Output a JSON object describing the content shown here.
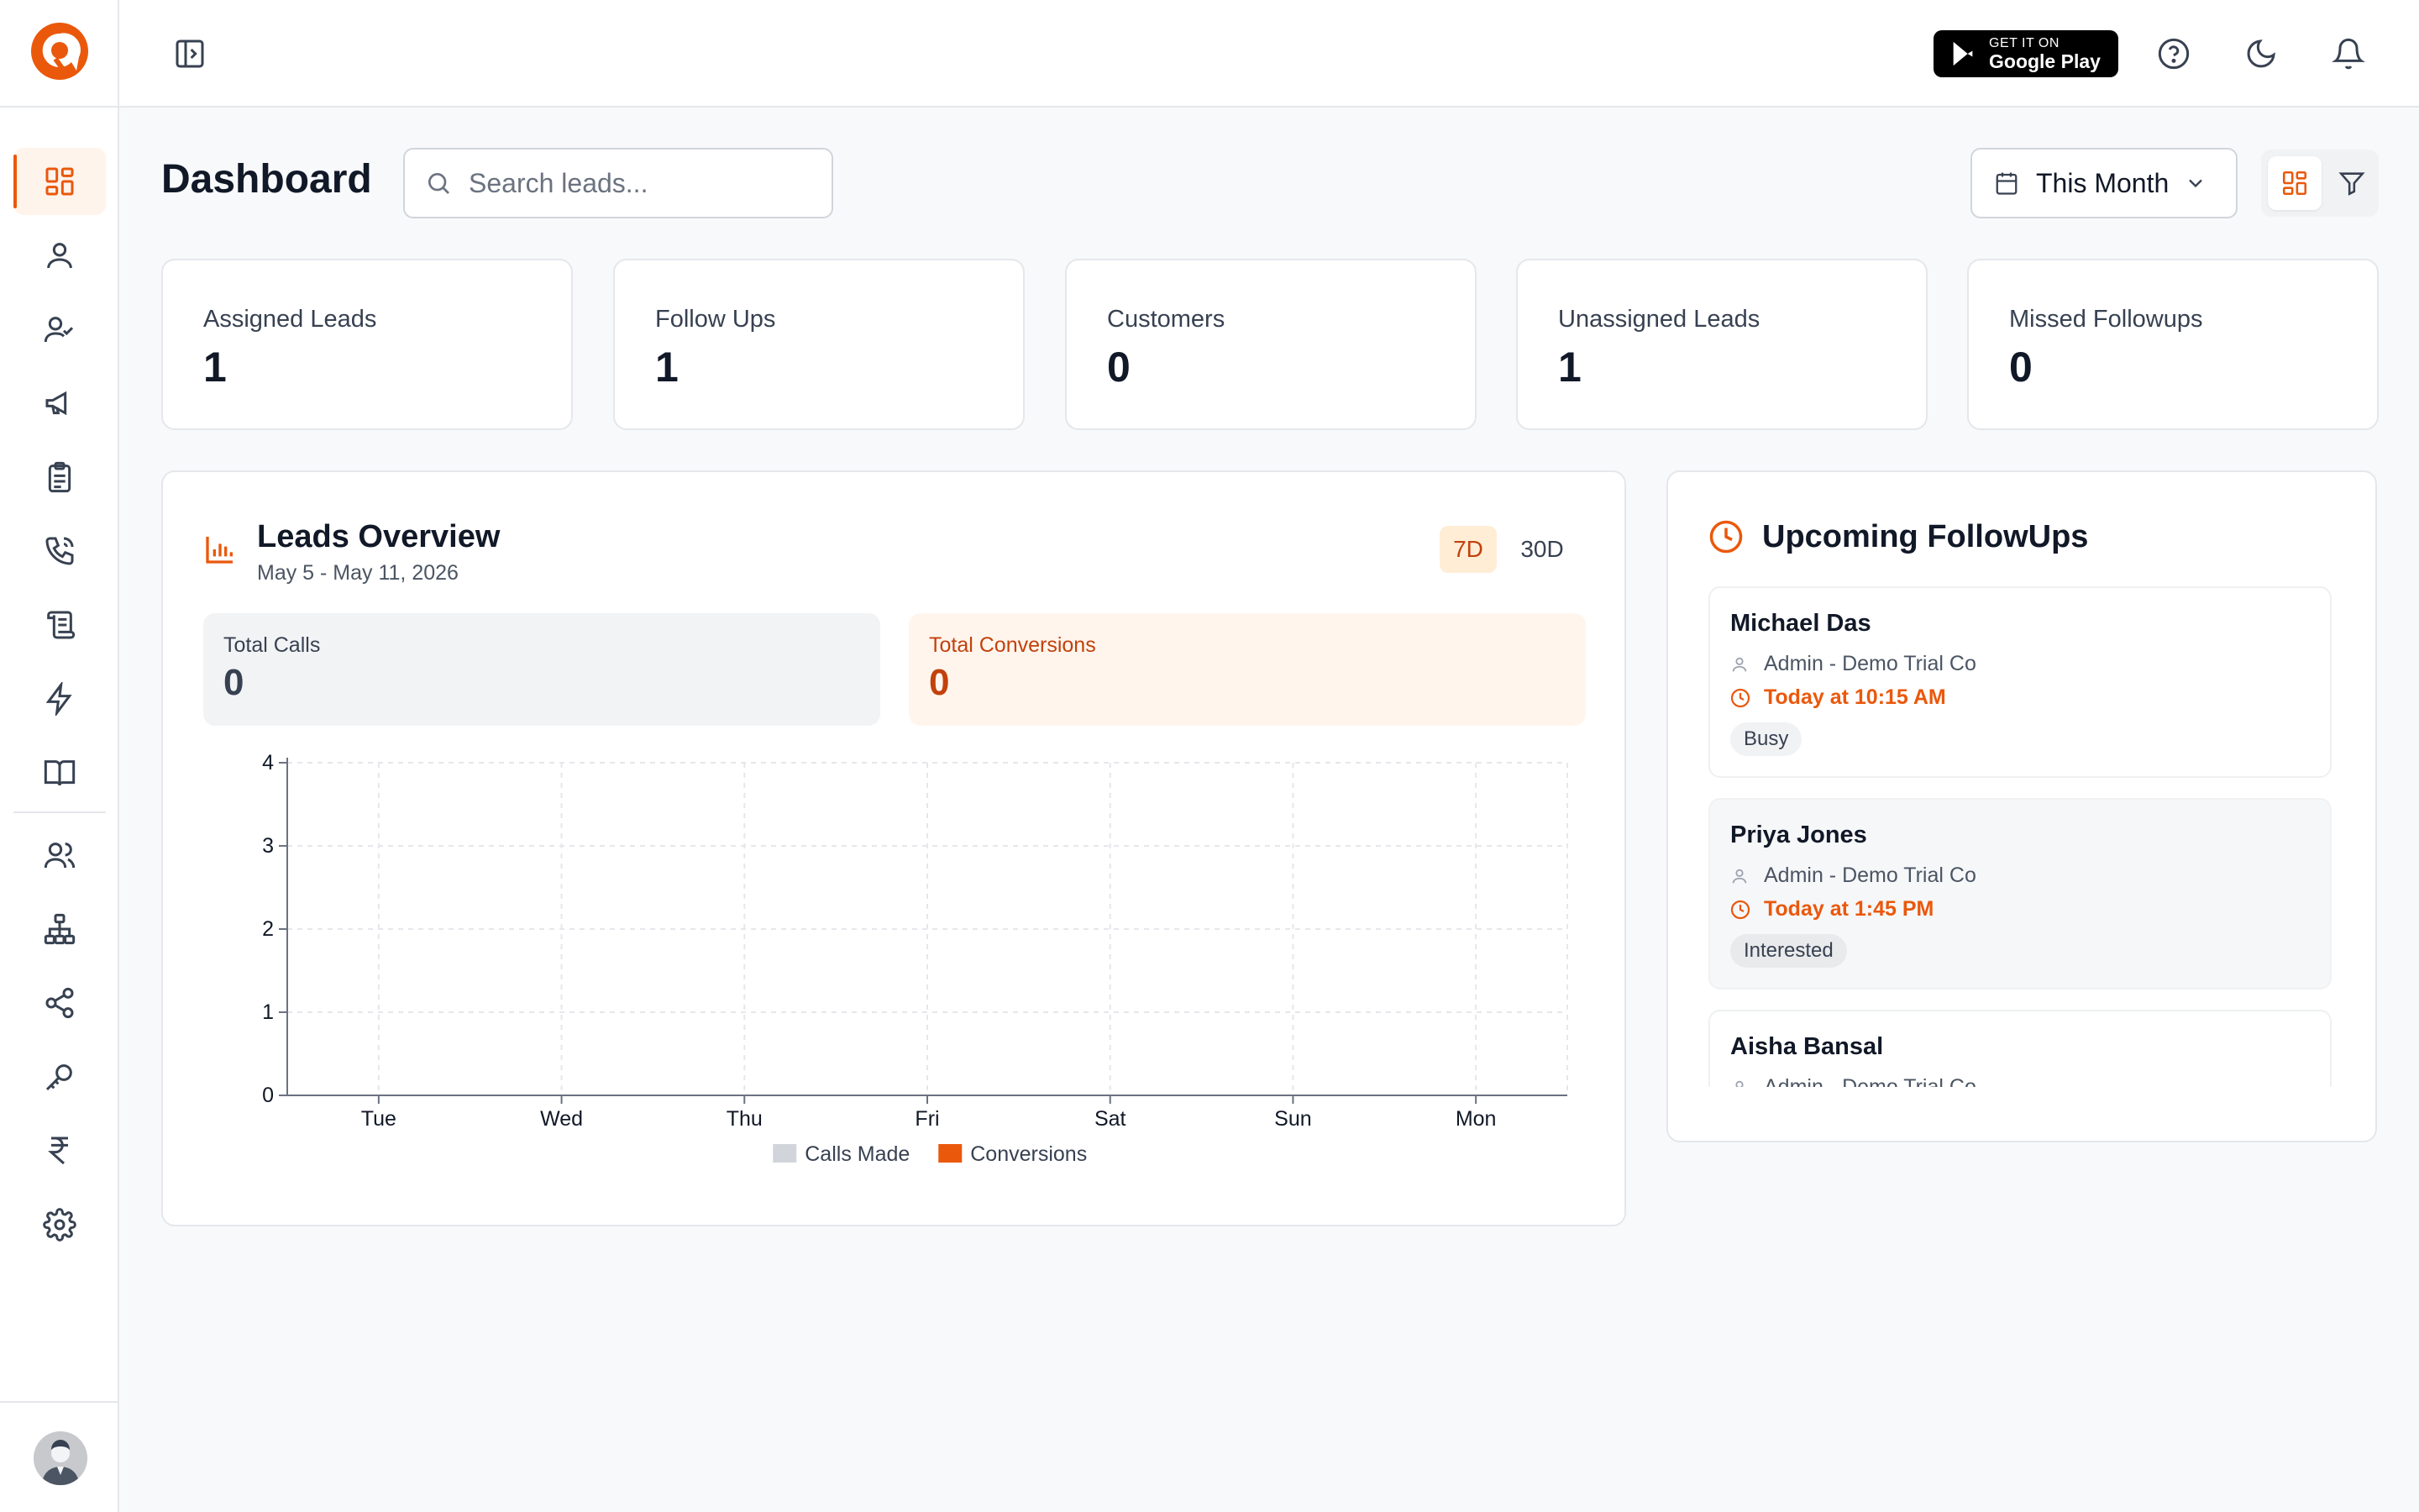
{
  "brand": {
    "accent": "#ea580c",
    "accent_light": "#fff4ec"
  },
  "sidebar": {
    "items": [
      {
        "name": "dashboard",
        "icon": "dashboard-grid-icon",
        "active": true
      },
      {
        "name": "user",
        "icon": "user-icon"
      },
      {
        "name": "user-check",
        "icon": "user-check-icon"
      },
      {
        "name": "campaigns",
        "icon": "megaphone-icon"
      },
      {
        "name": "clipboard",
        "icon": "clipboard-icon"
      },
      {
        "name": "calls",
        "icon": "phone-call-icon"
      },
      {
        "name": "scroll",
        "icon": "scroll-icon"
      },
      {
        "name": "automation",
        "icon": "lightning-icon"
      },
      {
        "name": "knowledge",
        "icon": "book-icon"
      },
      {
        "name": "team",
        "icon": "users-icon"
      },
      {
        "name": "hierarchy",
        "icon": "hierarchy-icon"
      },
      {
        "name": "share",
        "icon": "share-icon"
      },
      {
        "name": "keys",
        "icon": "key-icon"
      },
      {
        "name": "billing",
        "icon": "rupee-icon"
      },
      {
        "name": "settings",
        "icon": "gear-icon"
      }
    ]
  },
  "topbar": {
    "gplay_small": "GET IT ON",
    "gplay_big": "Google Play"
  },
  "header": {
    "title": "Dashboard",
    "search_placeholder": "Search leads...",
    "date_range": "This Month"
  },
  "stats": [
    {
      "label": "Assigned Leads",
      "value": "1"
    },
    {
      "label": "Follow Ups",
      "value": "1"
    },
    {
      "label": "Customers",
      "value": "0"
    },
    {
      "label": "Unassigned Leads",
      "value": "1"
    },
    {
      "label": "Missed Followups",
      "value": "0"
    }
  ],
  "overview": {
    "title": "Leads Overview",
    "date_range": "May 5 - May 11, 2026",
    "range_7d": "7D",
    "range_30d": "30D",
    "total_calls_label": "Total Calls",
    "total_calls_value": "0",
    "total_conversions_label": "Total Conversions",
    "total_conversions_value": "0"
  },
  "chart_data": {
    "type": "bar",
    "categories": [
      "Tue",
      "Wed",
      "Thu",
      "Fri",
      "Sat",
      "Sun",
      "Mon"
    ],
    "series": [
      {
        "name": "Calls Made",
        "values": [
          0,
          0,
          0,
          0,
          0,
          0,
          0
        ],
        "color": "#d1d5db"
      },
      {
        "name": "Conversions",
        "values": [
          0,
          0,
          0,
          0,
          0,
          0,
          0
        ],
        "color": "#ea580c"
      }
    ],
    "yticks": [
      0,
      1,
      2,
      3,
      4
    ],
    "ylim": [
      0,
      4
    ],
    "grid": true,
    "legend": "bottom"
  },
  "upcoming": {
    "title": "Upcoming FollowUps",
    "items": [
      {
        "name": "Michael Das",
        "company": "Admin - Demo Trial Co",
        "time": "Today at 10:15 AM",
        "status": "Busy"
      },
      {
        "name": "Priya Jones",
        "company": "Admin - Demo Trial Co",
        "time": "Today at 1:45 PM",
        "status": "Interested"
      },
      {
        "name": "Aisha Bansal",
        "company": "Admin - Demo Trial Co",
        "time": "",
        "status": ""
      }
    ]
  }
}
